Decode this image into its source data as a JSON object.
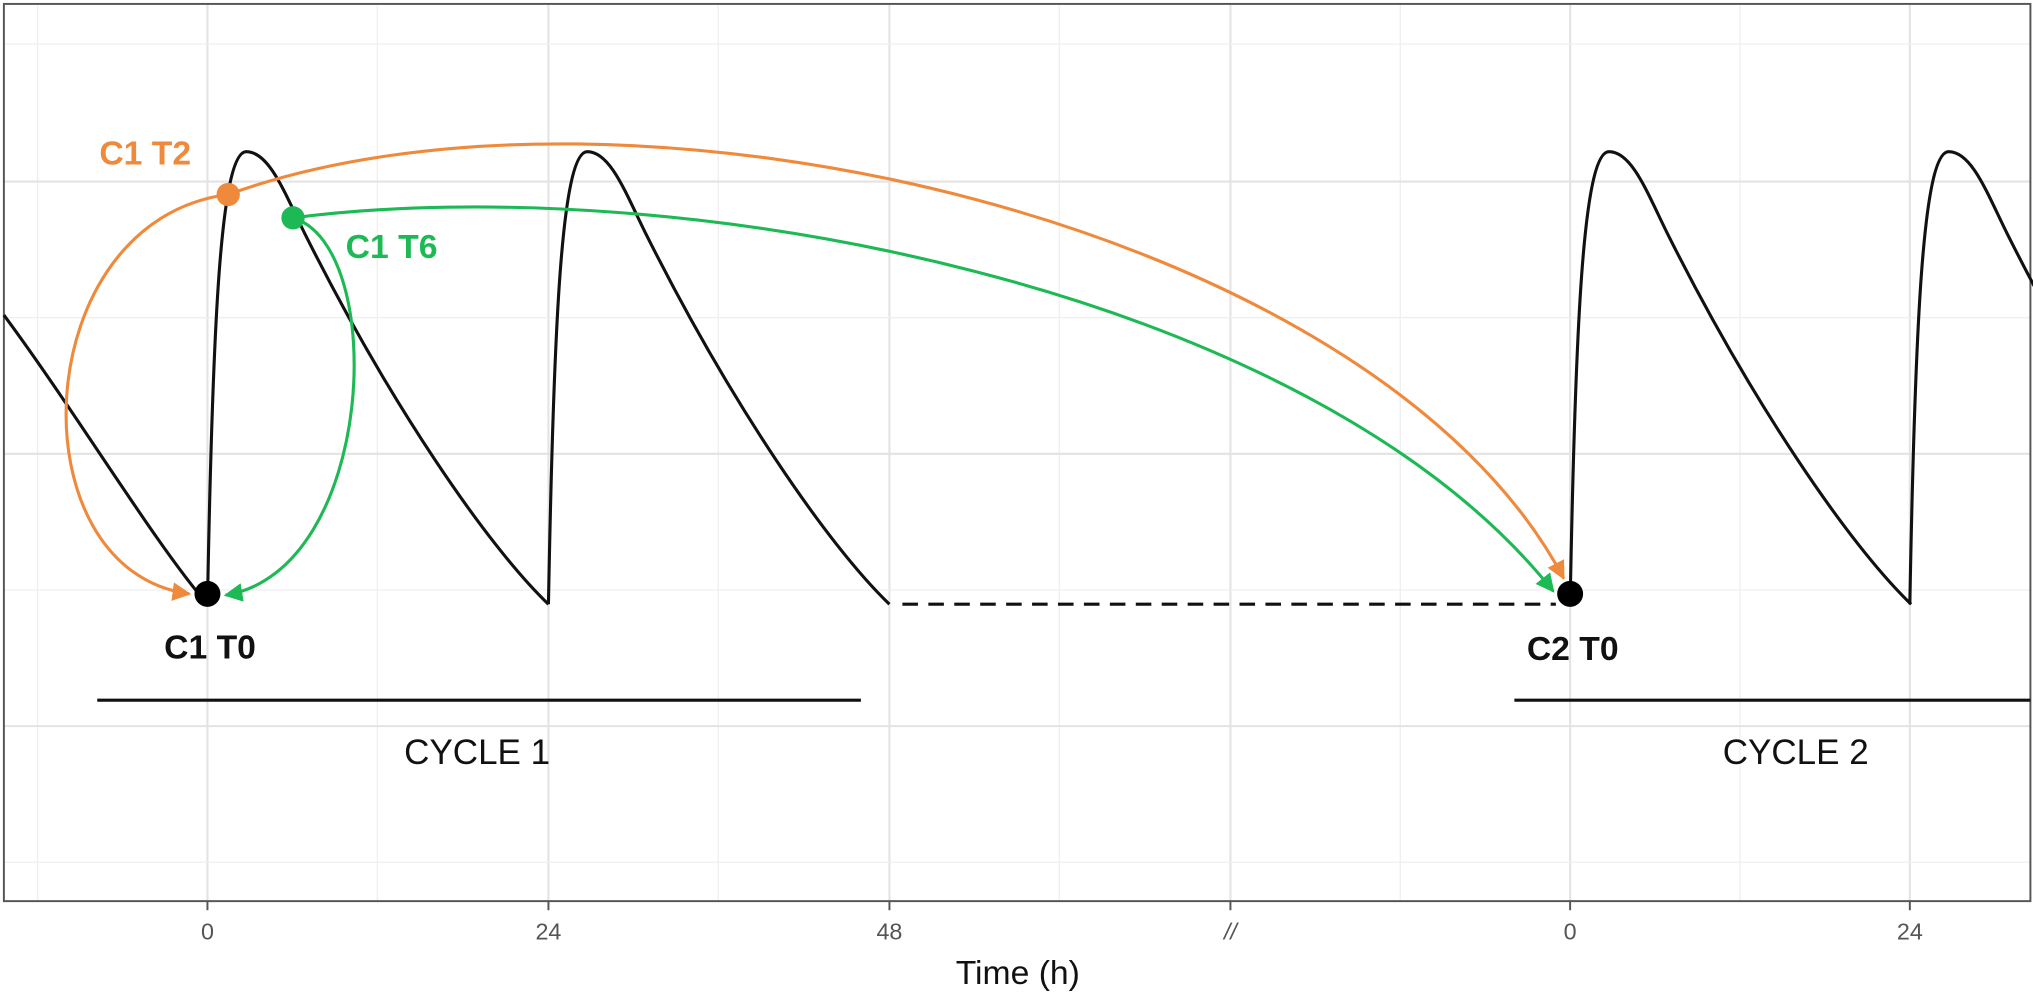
{
  "x_axis": {
    "title": "Time (h)",
    "tick_labels": [
      "0",
      "24",
      "48",
      "//",
      "0",
      "24"
    ]
  },
  "points": {
    "c1_t0": "C1 T0",
    "c1_t2": "C1 T2",
    "c1_t6": "C1 T6",
    "c2_t0": "C2 T0"
  },
  "cycles": [
    "CYCLE 1",
    "CYCLE 2"
  ]
}
